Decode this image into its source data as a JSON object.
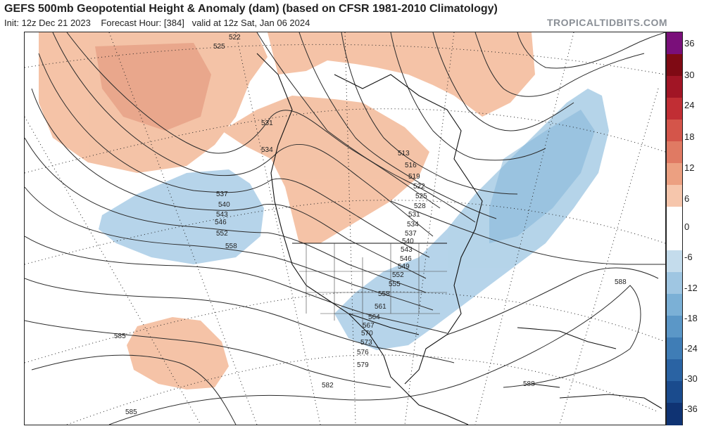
{
  "header": {
    "title": "GEFS 500mb Geopotential Height & Anomaly (dam) (based on CFSR 1981-2010 Climatology)",
    "init": "Init: 12z Dec 21 2023",
    "forecast_hour": "Forecast Hour: [384]",
    "valid": "valid at 12z Sat, Jan 06 2024",
    "brand": "TROPICALTIDBITS.COM"
  },
  "colorbar": {
    "ticks": [
      "36",
      "30",
      "24",
      "18",
      "12",
      "6",
      "0",
      "-6",
      "-12",
      "-18",
      "-24",
      "-30",
      "-36"
    ],
    "colors": [
      "#7a0f7a",
      "#7f0a14",
      "#a11525",
      "#c12e34",
      "#d4554a",
      "#e07a63",
      "#eca081",
      "#f6c6ac",
      "#ffffff",
      "#ffffff",
      "#c4dcec",
      "#9fc6e2",
      "#7bb0d6",
      "#5b97c7",
      "#3f7db6",
      "#2a63a3",
      "#1a4b8d",
      "#0f3373"
    ]
  },
  "map": {
    "contour_labels": [
      "522",
      "525",
      "531",
      "534",
      "537",
      "540",
      "543",
      "546",
      "552",
      "558",
      "513",
      "516",
      "519",
      "522",
      "525",
      "528",
      "531",
      "534",
      "537",
      "540",
      "543",
      "546",
      "549",
      "552",
      "555",
      "558",
      "561",
      "564",
      "567",
      "570",
      "573",
      "576",
      "579",
      "582",
      "585",
      "585",
      "588",
      "588"
    ],
    "anomaly_legend_positive": "#f3b998",
    "anomaly_legend_negative": "#8fbfe0"
  }
}
